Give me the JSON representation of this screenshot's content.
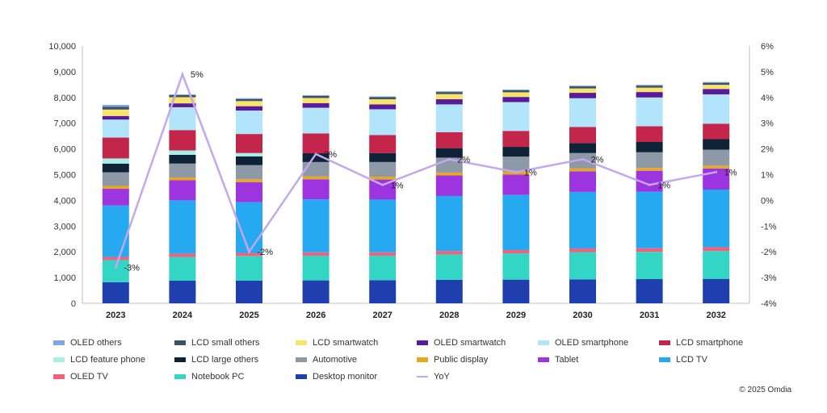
{
  "chart_data": {
    "type": "bar",
    "stacked": true,
    "categories": [
      "2023",
      "2024",
      "2025",
      "2026",
      "2027",
      "2028",
      "2029",
      "2030",
      "2031",
      "2032"
    ],
    "y_left": {
      "min": 0,
      "max": 10000,
      "step": 1000,
      "tick_labels": [
        "0",
        "1,000",
        "2,000",
        "3,000",
        "4,000",
        "5,000",
        "6,000",
        "7,000",
        "8,000",
        "9,000",
        "10,000"
      ]
    },
    "y_right": {
      "min": -4,
      "max": 6,
      "step": 1,
      "tick_labels": [
        "-4%",
        "-3%",
        "-2%",
        "-1%",
        "0%",
        "1%",
        "2%",
        "3%",
        "4%",
        "5%",
        "6%"
      ]
    },
    "grid": false,
    "legend_position": "bottom",
    "series": [
      {
        "name": "Desktop monitor",
        "color": "#1f3fae",
        "values": [
          820,
          880,
          880,
          890,
          900,
          910,
          920,
          930,
          940,
          950
        ]
      },
      {
        "name": "Notebook PC",
        "color": "#33d6c4",
        "values": [
          860,
          920,
          960,
          960,
          950,
          990,
          1020,
          1060,
          1060,
          1080
        ]
      },
      {
        "name": "OLED TV",
        "color": "#f0617a",
        "values": [
          120,
          130,
          120,
          130,
          130,
          130,
          130,
          140,
          140,
          150
        ]
      },
      {
        "name": "LCD TV",
        "color": "#26a9f0",
        "values": [
          2000,
          2070,
          1970,
          2060,
          2050,
          2140,
          2140,
          2200,
          2200,
          2240
        ]
      },
      {
        "name": "Tablet",
        "color": "#9c35e0",
        "values": [
          650,
          780,
          780,
          780,
          780,
          800,
          790,
          800,
          810,
          820
        ]
      },
      {
        "name": "Public display",
        "color": "#e8a81c",
        "values": [
          110,
          110,
          110,
          110,
          110,
          110,
          110,
          110,
          110,
          110
        ]
      },
      {
        "name": "Automotive",
        "color": "#8e99a7",
        "values": [
          530,
          540,
          550,
          560,
          570,
          580,
          590,
          600,
          610,
          620
        ]
      },
      {
        "name": "LCD large others",
        "color": "#0e2238",
        "values": [
          340,
          340,
          340,
          340,
          350,
          370,
          380,
          390,
          400,
          410
        ]
      },
      {
        "name": "LCD feature phone",
        "color": "#a8efe5",
        "values": [
          200,
          170,
          130,
          0,
          0,
          0,
          0,
          0,
          0,
          0
        ]
      },
      {
        "name": "LCD smartphone",
        "color": "#c3264a",
        "values": [
          810,
          790,
          740,
          770,
          700,
          620,
          620,
          620,
          610,
          600
        ]
      },
      {
        "name": "OLED smartphone",
        "color": "#b2e4fb",
        "values": [
          700,
          890,
          910,
          1000,
          1000,
          1080,
          1120,
          1120,
          1120,
          1140
        ]
      },
      {
        "name": "OLED smartwatch",
        "color": "#5a1a9c",
        "values": [
          140,
          150,
          170,
          180,
          190,
          200,
          200,
          210,
          210,
          210
        ]
      },
      {
        "name": "LCD smartwatch",
        "color": "#f7e46a",
        "values": [
          250,
          240,
          200,
          200,
          200,
          200,
          180,
          170,
          170,
          160
        ]
      },
      {
        "name": "LCD small others",
        "color": "#3c5068",
        "values": [
          110,
          80,
          80,
          80,
          80,
          80,
          80,
          80,
          80,
          80
        ]
      },
      {
        "name": "OLED others",
        "color": "#7fa5e6",
        "values": [
          70,
          30,
          30,
          30,
          30,
          30,
          30,
          30,
          30,
          30
        ]
      }
    ],
    "line_series": {
      "name": "YoY",
      "color": "#c3a8ef",
      "axis": "right",
      "values": [
        -2.6,
        4.9,
        -2.0,
        1.8,
        0.6,
        1.6,
        1.1,
        1.6,
        0.6,
        1.1
      ],
      "labels": [
        "-3%",
        "5%",
        "-2%",
        "2%",
        "1%",
        "2%",
        "1%",
        "2%",
        "1%",
        "1%"
      ]
    },
    "legend_order": [
      "OLED others",
      "LCD small others",
      "LCD smartwatch",
      "OLED smartwatch",
      "OLED smartphone",
      "LCD smartphone",
      "LCD feature phone",
      "LCD large others",
      "Automotive",
      "Public display",
      "Tablet",
      "LCD TV",
      "OLED TV",
      "Notebook PC",
      "Desktop monitor",
      "YoY"
    ]
  },
  "footer": {
    "copyright": "© 2025 Omdia"
  }
}
